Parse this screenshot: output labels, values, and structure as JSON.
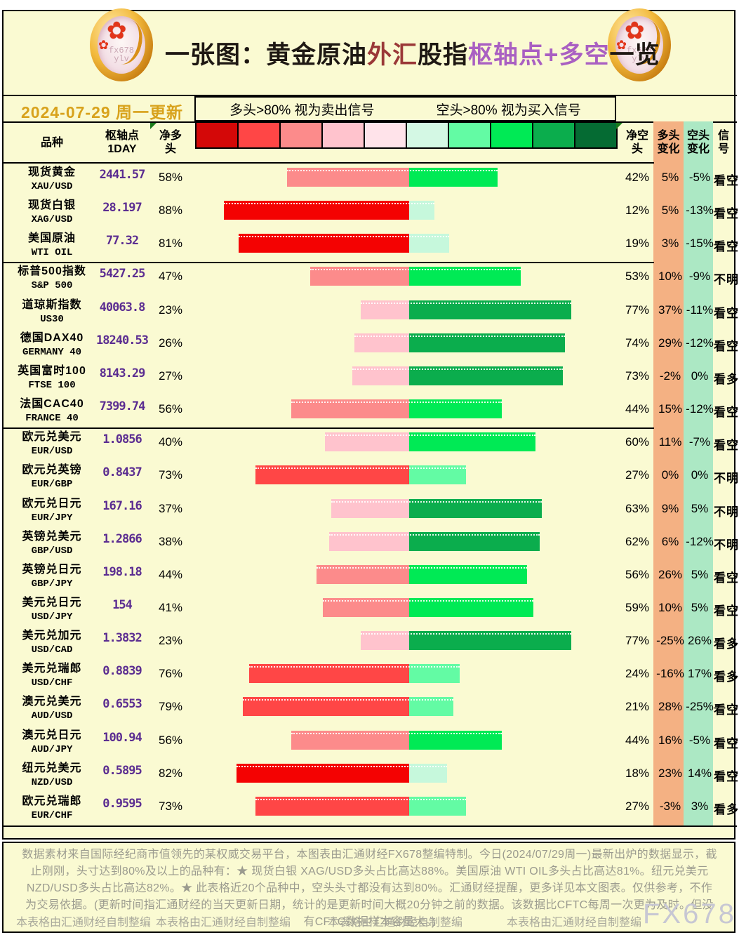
{
  "title": {
    "segments": [
      {
        "text": "一张图：黄金原油",
        "color": "#1E1813"
      },
      {
        "text": "外汇",
        "color": "#9A3838"
      },
      {
        "text": "股指",
        "color": "#1E1813"
      },
      {
        "text": "枢轴点+多空",
        "color": "#A95FC2"
      },
      {
        "text": "一览",
        "color": "#1E1813"
      }
    ]
  },
  "date_label": "2024-07-29 周一更新",
  "coin_watermark": "fx678\nylv",
  "flower_icon_glyph": "✿",
  "legend": {
    "sell_rule": "多头>80% 视为卖出信号",
    "buy_rule": "空头>80% 视为买入信号",
    "scale_colors": [
      "#D40808",
      "#FF4646",
      "#FC8B8B",
      "#FFC3CD",
      "#FFE3EA",
      "#D4F8E4",
      "#63FBA4",
      "#00EA55",
      "#0BAD4D",
      "#056B33"
    ],
    "red_buckets": [
      "#FFE3EA",
      "#FFC3CD",
      "#FC8B8B",
      "#FF4646",
      "#F40202"
    ],
    "green_buckets": [
      "#C6F8DC",
      "#63FBA4",
      "#00EA55",
      "#0BAD4D",
      "#04652F"
    ]
  },
  "columns": {
    "instrument": "品种",
    "pivot": "枢轴点\n1DAY",
    "net_long": "净多\n头",
    "net_short": "净空\n头",
    "long_change": "多头\n变化",
    "short_change": "空头\n变化",
    "signal": "信\n号"
  },
  "band_colors": {
    "long_change": "#F4B183",
    "short_change": "#ACE8C4"
  },
  "rows": [
    {
      "name_cn": "现货黄金",
      "code": "XAU/USD",
      "pivot": "2441.57",
      "long_pct": 58,
      "short_pct": 42,
      "long_chg": "5%",
      "short_chg": "-5%",
      "signal": "看空",
      "group_start": false
    },
    {
      "name_cn": "现货白银",
      "code": "XAG/USD",
      "pivot": "28.197",
      "long_pct": 88,
      "short_pct": 12,
      "long_chg": "5%",
      "short_chg": "-13%",
      "signal": "看空",
      "group_start": false
    },
    {
      "name_cn": "美国原油",
      "code": "WTI OIL",
      "pivot": "77.32",
      "long_pct": 81,
      "short_pct": 19,
      "long_chg": "3%",
      "short_chg": "-15%",
      "signal": "看空",
      "group_start": false
    },
    {
      "name_cn": "标普500指数",
      "code": "S&P 500",
      "pivot": "5427.25",
      "long_pct": 47,
      "short_pct": 53,
      "long_chg": "10%",
      "short_chg": "-9%",
      "signal": "不明",
      "group_start": true
    },
    {
      "name_cn": "道琼斯指数",
      "code": "US30",
      "pivot": "40063.8",
      "long_pct": 23,
      "short_pct": 77,
      "long_chg": "37%",
      "short_chg": "-11%",
      "signal": "看空",
      "group_start": false
    },
    {
      "name_cn": "德国DAX40",
      "code": "GERMANY 40",
      "pivot": "18240.53",
      "long_pct": 26,
      "short_pct": 74,
      "long_chg": "29%",
      "short_chg": "-12%",
      "signal": "看空",
      "group_start": false
    },
    {
      "name_cn": "英国富时100",
      "code": "FTSE 100",
      "pivot": "8143.29",
      "long_pct": 27,
      "short_pct": 73,
      "long_chg": "-2%",
      "short_chg": "0%",
      "signal": "看多",
      "group_start": false
    },
    {
      "name_cn": "法国CAC40",
      "code": "FRANCE 40",
      "pivot": "7399.74",
      "long_pct": 56,
      "short_pct": 44,
      "long_chg": "15%",
      "short_chg": "-12%",
      "signal": "看空",
      "group_start": false
    },
    {
      "name_cn": "欧元兑美元",
      "code": "EUR/USD",
      "pivot": "1.0856",
      "long_pct": 40,
      "short_pct": 60,
      "long_chg": "11%",
      "short_chg": "-7%",
      "signal": "看空",
      "group_start": true
    },
    {
      "name_cn": "欧元兑英镑",
      "code": "EUR/GBP",
      "pivot": "0.8437",
      "long_pct": 73,
      "short_pct": 27,
      "long_chg": "0%",
      "short_chg": "0%",
      "signal": "不明",
      "group_start": false
    },
    {
      "name_cn": "欧元兑日元",
      "code": "EUR/JPY",
      "pivot": "167.16",
      "long_pct": 37,
      "short_pct": 63,
      "long_chg": "9%",
      "short_chg": "5%",
      "signal": "不明",
      "group_start": false
    },
    {
      "name_cn": "英镑兑美元",
      "code": "GBP/USD",
      "pivot": "1.2866",
      "long_pct": 38,
      "short_pct": 62,
      "long_chg": "6%",
      "short_chg": "-12%",
      "signal": "不明",
      "group_start": false
    },
    {
      "name_cn": "英镑兑日元",
      "code": "GBP/JPY",
      "pivot": "198.18",
      "long_pct": 44,
      "short_pct": 56,
      "long_chg": "26%",
      "short_chg": "5%",
      "signal": "看空",
      "group_start": false
    },
    {
      "name_cn": "美元兑日元",
      "code": "USD/JPY",
      "pivot": "154",
      "long_pct": 41,
      "short_pct": 59,
      "long_chg": "10%",
      "short_chg": "5%",
      "signal": "看空",
      "group_start": false
    },
    {
      "name_cn": "美元兑加元",
      "code": "USD/CAD",
      "pivot": "1.3832",
      "long_pct": 23,
      "short_pct": 77,
      "long_chg": "-25%",
      "short_chg": "26%",
      "signal": "看多",
      "group_start": false
    },
    {
      "name_cn": "美元兑瑞郎",
      "code": "USD/CHF",
      "pivot": "0.8839",
      "long_pct": 76,
      "short_pct": 24,
      "long_chg": "-16%",
      "short_chg": "17%",
      "signal": "看多",
      "group_start": false
    },
    {
      "name_cn": "澳元兑美元",
      "code": "AUD/USD",
      "pivot": "0.6553",
      "long_pct": 79,
      "short_pct": 21,
      "long_chg": "28%",
      "short_chg": "-25%",
      "signal": "看空",
      "group_start": false
    },
    {
      "name_cn": "澳元兑日元",
      "code": "AUD/JPY",
      "pivot": "100.94",
      "long_pct": 56,
      "short_pct": 44,
      "long_chg": "16%",
      "short_chg": "-5%",
      "signal": "看空",
      "group_start": false
    },
    {
      "name_cn": "纽元兑美元",
      "code": "NZD/USD",
      "pivot": "0.5895",
      "long_pct": 82,
      "short_pct": 18,
      "long_chg": "23%",
      "short_chg": "14%",
      "signal": "看空",
      "group_start": false
    },
    {
      "name_cn": "欧元兑瑞郎",
      "code": "EUR/CHF",
      "pivot": "0.9595",
      "long_pct": 73,
      "short_pct": 27,
      "long_chg": "-3%",
      "short_chg": "3%",
      "signal": "看多",
      "group_start": false
    }
  ],
  "footer": {
    "note": "数据素材来自国际经纪商市值领先的某权威交易平台，本图表由汇通财经FX678整编特制。今日(2024/07/29周一)最新出炉的数据显示，截止刚刚，头寸达到80%及以上的品种有：★ 现货白银 XAG/USD多头占比高达88%。美国原油 WTI OIL多头占比高达81%。纽元兑美元 NZD/USD多头占比高达82%。★ 此表格近20个品种中，空头头寸都没有达到80%。汇通财经提醒，更多详见本文图表。仅供参考，不作为交易依据。(更新时间指汇通财经的当天更新日期，统计的是更新时间大概20分钟之前的数据。该数据比CFTC每周一次更为及时。但没有CFTC数据样本容量大。)",
    "credits": [
      "本表格由汇通财经自制整编",
      "本表格由汇通财经自制整编",
      "本表格由汇通财经自制整编",
      "本表格由汇通财经自制整编"
    ],
    "watermark": "FX678"
  },
  "chart_data": {
    "type": "bar",
    "orientation": "horizontal-diverging",
    "title": "一张图：黄金原油外汇股指枢轴点+多空一览",
    "categories": [
      "XAU/USD",
      "XAG/USD",
      "WTI OIL",
      "S&P 500",
      "US30",
      "GERMANY 40",
      "FTSE 100",
      "FRANCE 40",
      "EUR/USD",
      "EUR/GBP",
      "EUR/JPY",
      "GBP/USD",
      "GBP/JPY",
      "USD/JPY",
      "USD/CAD",
      "USD/CHF",
      "AUD/USD",
      "AUD/JPY",
      "NZD/USD",
      "EUR/CHF"
    ],
    "series": [
      {
        "name": "净多头%",
        "values": [
          58,
          88,
          81,
          47,
          23,
          26,
          27,
          56,
          40,
          73,
          37,
          38,
          44,
          41,
          23,
          76,
          79,
          56,
          82,
          73
        ]
      },
      {
        "name": "净空头%",
        "values": [
          42,
          12,
          19,
          53,
          77,
          74,
          73,
          44,
          60,
          27,
          63,
          62,
          56,
          59,
          77,
          24,
          21,
          44,
          18,
          27
        ]
      },
      {
        "name": "多头变化%",
        "values": [
          5,
          5,
          3,
          10,
          37,
          29,
          -2,
          15,
          11,
          0,
          9,
          6,
          26,
          10,
          -25,
          -16,
          28,
          16,
          23,
          -3
        ]
      },
      {
        "name": "空头变化%",
        "values": [
          -5,
          -13,
          -15,
          -9,
          -11,
          -12,
          0,
          -12,
          -7,
          0,
          5,
          -12,
          5,
          5,
          26,
          17,
          -25,
          -5,
          14,
          3
        ]
      },
      {
        "name": "枢轴点1DAY",
        "values": [
          2441.57,
          28.197,
          77.32,
          5427.25,
          40063.8,
          18240.53,
          8143.29,
          7399.74,
          1.0856,
          0.8437,
          167.16,
          1.2866,
          198.18,
          154,
          1.3832,
          0.8839,
          0.6553,
          100.94,
          0.5895,
          0.9595
        ]
      }
    ],
    "signals": [
      "看空",
      "看空",
      "看空",
      "不明",
      "看空",
      "看空",
      "看多",
      "看空",
      "看空",
      "不明",
      "不明",
      "不明",
      "看空",
      "看空",
      "看多",
      "看多",
      "看空",
      "看空",
      "看空",
      "看多"
    ],
    "xlim": [
      -100,
      100
    ],
    "legend_position": "top",
    "grid": false
  }
}
